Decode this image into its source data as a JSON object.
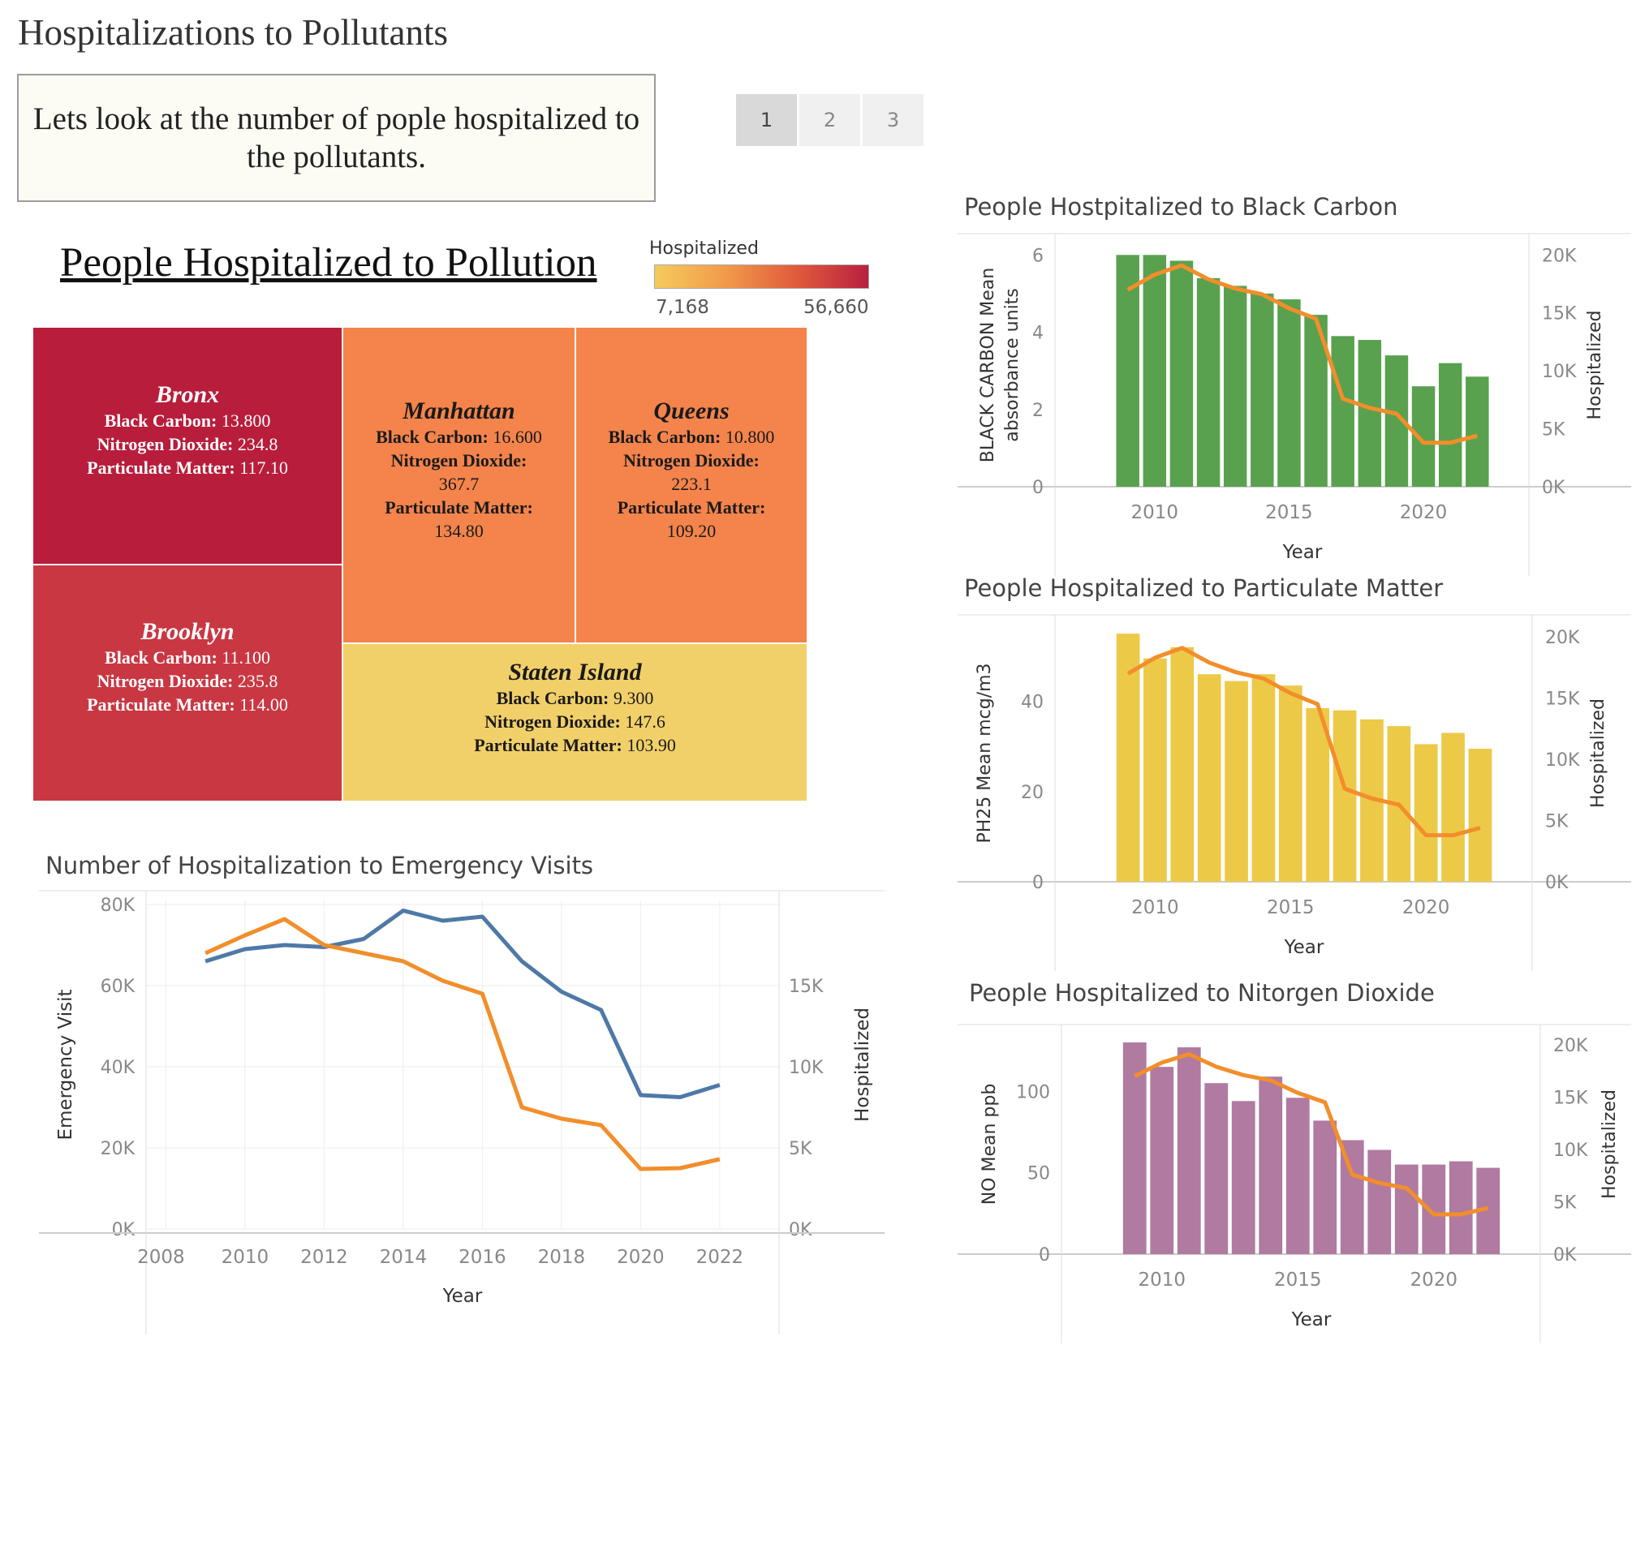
{
  "dashboard": {
    "title": "Hospitalizations to Pollutants",
    "intro": "Lets look at the number of pople hospitalized to the pollutants.",
    "pages": [
      "1",
      "2",
      "3"
    ],
    "active_page": "1"
  },
  "treemap": {
    "title": "People Hospitalized to Pollution",
    "legend": {
      "title": "Hospitalized",
      "min": "7,168",
      "max": "56,660"
    },
    "labels": {
      "bc": "Black Carbon:",
      "no": "Nitrogen Dioxide:",
      "pm": "Particulate Matter:"
    },
    "boroughs": {
      "bronx": {
        "name": "Bronx",
        "bc": "13.800",
        "no": "234.8",
        "pm": "117.10",
        "color": "#b81d3b"
      },
      "brooklyn": {
        "name": "Brooklyn",
        "bc": "11.100",
        "no": "235.8",
        "pm": "114.00",
        "color": "#c93743"
      },
      "manhattan": {
        "name": "Manhattan",
        "bc": "16.600",
        "no": "367.7",
        "pm": "134.80",
        "color": "#f4844b"
      },
      "queens": {
        "name": "Queens",
        "bc": "10.800",
        "no": "223.1",
        "pm": "109.20",
        "color": "#f4844b"
      },
      "staten": {
        "name": "Staten Island",
        "bc": "9.300",
        "no": "147.6",
        "pm": "103.90",
        "color": "#f2d069"
      }
    }
  },
  "chart_data": [
    {
      "type": "line",
      "title": "Number of Hospitalization to Emergency Visits",
      "xlabel": "Year",
      "ylabel": "Emergency Visit",
      "y2label": "Hospitalized",
      "x": [
        2009,
        2010,
        2011,
        2012,
        2013,
        2014,
        2015,
        2016,
        2017,
        2018,
        2019,
        2020,
        2021,
        2022
      ],
      "series": [
        {
          "values": [
            66000,
            69000,
            70000,
            69500,
            71500,
            78500,
            76000,
            77000,
            66000,
            58500,
            54000,
            33000,
            32500,
            35500
          ],
          "color": "#4e79a7",
          "axis": "left"
        },
        {
          "values": [
            17000,
            18100,
            19100,
            17500,
            17000,
            16500,
            15300,
            14500,
            7500,
            6800,
            6400,
            3700,
            3750,
            4300
          ],
          "color": "#f28e2b",
          "axis": "right"
        }
      ],
      "xticks": [
        2008,
        2010,
        2012,
        2014,
        2016,
        2018,
        2020,
        2022
      ],
      "ylim": [
        0,
        80000
      ],
      "yticks": [
        "0K",
        "20K",
        "40K",
        "60K",
        "80K"
      ],
      "y2lim": [
        0,
        20000
      ],
      "y2ticks": [
        "0K",
        "5K",
        "10K",
        "15K"
      ],
      "grid": true
    },
    {
      "type": "bar",
      "title": "People Hostpitalized to Black Carbon",
      "xlabel": "Year",
      "ylabel": "BLACK CARBON Mean absorbance units",
      "y2label": "Hospitalized",
      "x": [
        2009,
        2010,
        2011,
        2012,
        2013,
        2014,
        2015,
        2016,
        2017,
        2018,
        2019,
        2020,
        2021,
        2022
      ],
      "values": [
        6.0,
        6.0,
        5.85,
        5.4,
        5.2,
        5.0,
        4.85,
        4.45,
        3.9,
        3.8,
        3.4,
        2.6,
        3.2,
        2.85
      ],
      "bar_color": "#59a14f",
      "line": {
        "values": [
          17000,
          18300,
          19100,
          17900,
          17100,
          16600,
          15400,
          14500,
          7600,
          6800,
          6300,
          3800,
          3800,
          4400
        ],
        "color": "#f28e2b"
      },
      "xticks": [
        2010,
        2015,
        2020
      ],
      "ylim": [
        0,
        6.3
      ],
      "yticks": [
        0,
        2,
        4,
        6
      ],
      "y2lim": [
        0,
        21000
      ],
      "y2ticks": [
        "0K",
        "5K",
        "10K",
        "15K",
        "20K"
      ]
    },
    {
      "type": "bar",
      "title": "People Hospitalized to Particulate Matter",
      "xlabel": "Year",
      "ylabel": "PH25 Mean mcg/m3",
      "y2label": "Hospitalized",
      "x": [
        2009,
        2010,
        2011,
        2012,
        2013,
        2014,
        2015,
        2016,
        2017,
        2018,
        2019,
        2020,
        2021,
        2022
      ],
      "values": [
        55,
        49.5,
        52,
        46,
        44.5,
        46,
        43.5,
        38.5,
        38,
        36,
        34.5,
        30.5,
        33,
        29.5
      ],
      "bar_color": "#edc948",
      "line": {
        "values": [
          17000,
          18300,
          19100,
          17900,
          17100,
          16600,
          15400,
          14500,
          7600,
          6800,
          6300,
          3800,
          3800,
          4400
        ],
        "color": "#f28e2b"
      },
      "xticks": [
        2010,
        2015,
        2020
      ],
      "ylim": [
        0,
        57
      ],
      "yticks": [
        0,
        20,
        40
      ],
      "y2lim": [
        0,
        21000
      ],
      "y2ticks": [
        "0K",
        "5K",
        "10K",
        "15K",
        "20K"
      ]
    },
    {
      "type": "bar",
      "title": "People Hospitalized to Nitorgen Dioxide",
      "xlabel": "Year",
      "ylabel": "NO Mean ppb",
      "y2label": "Hospitalized",
      "x": [
        2009,
        2010,
        2011,
        2012,
        2013,
        2014,
        2015,
        2016,
        2017,
        2018,
        2019,
        2020,
        2021,
        2022
      ],
      "values": [
        130,
        115,
        127,
        105,
        94,
        109,
        96,
        82,
        70,
        64,
        55,
        55,
        57,
        53
      ],
      "bar_color": "#b07aa1",
      "line": {
        "values": [
          17000,
          18300,
          19100,
          17900,
          17100,
          16600,
          15400,
          14500,
          7600,
          6800,
          6300,
          3800,
          3800,
          4400
        ],
        "color": "#f28e2b"
      },
      "xticks": [
        2010,
        2015,
        2020
      ],
      "ylim": [
        0,
        135
      ],
      "yticks": [
        0,
        50,
        100
      ],
      "y2lim": [
        0,
        21000
      ],
      "y2ticks": [
        "0K",
        "5K",
        "10K",
        "15K",
        "20K"
      ]
    }
  ]
}
